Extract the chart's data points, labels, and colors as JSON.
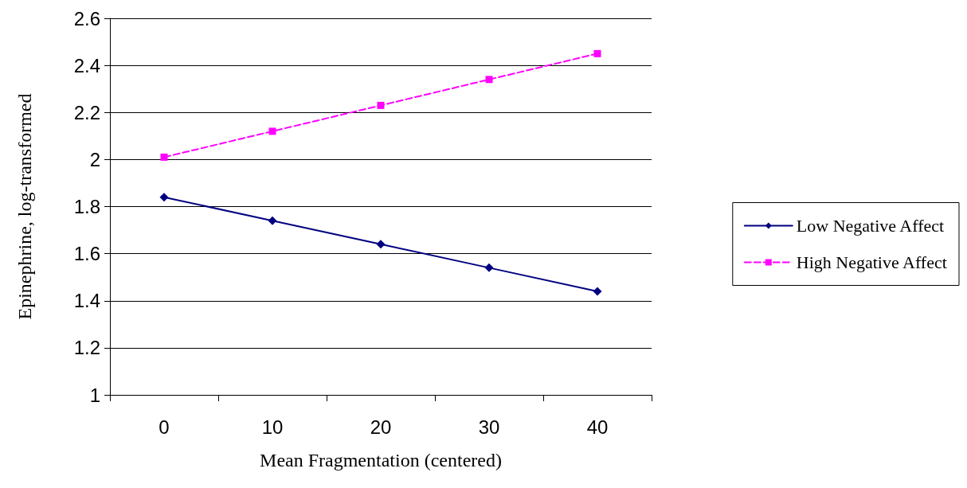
{
  "chart_data": {
    "type": "line",
    "xlabel": "Mean Fragmentation (centered)",
    "ylabel": "Epinephrine, log-transformed",
    "categories": [
      "0",
      "10",
      "20",
      "30",
      "40"
    ],
    "series": [
      {
        "name": "Low Negative Affect",
        "color": "#000080",
        "values": [
          1.84,
          1.74,
          1.64,
          1.54,
          1.44
        ],
        "marker": "diamond",
        "line_style": "solid"
      },
      {
        "name": "High Negative Affect",
        "color": "#ff00ff",
        "values": [
          2.01,
          2.12,
          2.23,
          2.34,
          2.45
        ],
        "marker": "square",
        "line_style": "dashed"
      }
    ],
    "ylim": [
      1,
      2.6
    ],
    "yticks": [
      1,
      1.2,
      1.4,
      1.6,
      1.8,
      2,
      2.2,
      2.4,
      2.6
    ],
    "grid": "y",
    "legend": "right"
  }
}
